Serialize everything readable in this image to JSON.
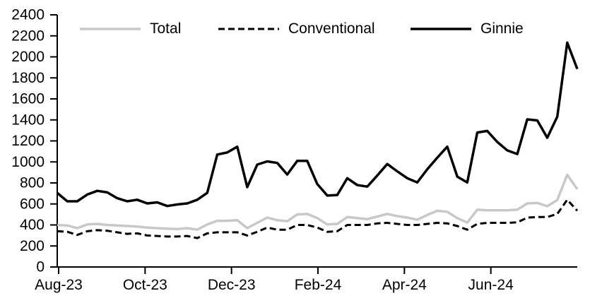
{
  "chart_data": {
    "type": "line",
    "title": "",
    "xlabel": "",
    "ylabel": "",
    "ylim": [
      0,
      2400
    ],
    "y_tick_step": 200,
    "grid": false,
    "legend_position": "top",
    "x_tick_labels": [
      "Aug-23",
      "Oct-23",
      "Dec-23",
      "Feb-24",
      "Apr-24",
      "Jun-24"
    ],
    "x_tick_months": [
      0,
      2,
      4,
      6,
      8,
      10
    ],
    "months_span": 12,
    "x_unit": "weekly",
    "series": [
      {
        "name": "Total",
        "color": "#c8c8c8",
        "style": "solid",
        "width": 3.5,
        "values": [
          400,
          395,
          370,
          405,
          410,
          400,
          395,
          390,
          385,
          375,
          370,
          365,
          360,
          370,
          355,
          405,
          440,
          440,
          445,
          370,
          420,
          470,
          445,
          435,
          500,
          505,
          465,
          405,
          410,
          475,
          465,
          455,
          480,
          505,
          485,
          470,
          450,
          495,
          535,
          525,
          465,
          422,
          545,
          540,
          540,
          540,
          545,
          605,
          610,
          578,
          637,
          878,
          740
        ]
      },
      {
        "name": "Conventional",
        "color": "#000000",
        "style": "dashed",
        "width": 3,
        "values": [
          340,
          335,
          305,
          340,
          350,
          345,
          330,
          315,
          320,
          300,
          295,
          290,
          290,
          295,
          275,
          320,
          330,
          330,
          330,
          300,
          335,
          375,
          355,
          355,
          400,
          400,
          375,
          335,
          340,
          400,
          400,
          400,
          415,
          420,
          410,
          400,
          400,
          410,
          420,
          415,
          390,
          355,
          410,
          420,
          420,
          420,
          425,
          470,
          475,
          475,
          505,
          640,
          535
        ]
      },
      {
        "name": "Ginnie",
        "color": "#000000",
        "style": "solid",
        "width": 3.5,
        "values": [
          705,
          625,
          625,
          690,
          725,
          710,
          655,
          625,
          640,
          605,
          615,
          580,
          595,
          605,
          640,
          705,
          1070,
          1090,
          1145,
          760,
          975,
          1005,
          990,
          880,
          1010,
          1010,
          790,
          680,
          685,
          845,
          780,
          765,
          870,
          980,
          910,
          845,
          805,
          930,
          1040,
          1145,
          860,
          805,
          1280,
          1295,
          1190,
          1110,
          1075,
          1405,
          1395,
          1230,
          1430,
          2135,
          1885
        ]
      }
    ],
    "axis_color": "#000000",
    "tick_font_size": 21
  }
}
